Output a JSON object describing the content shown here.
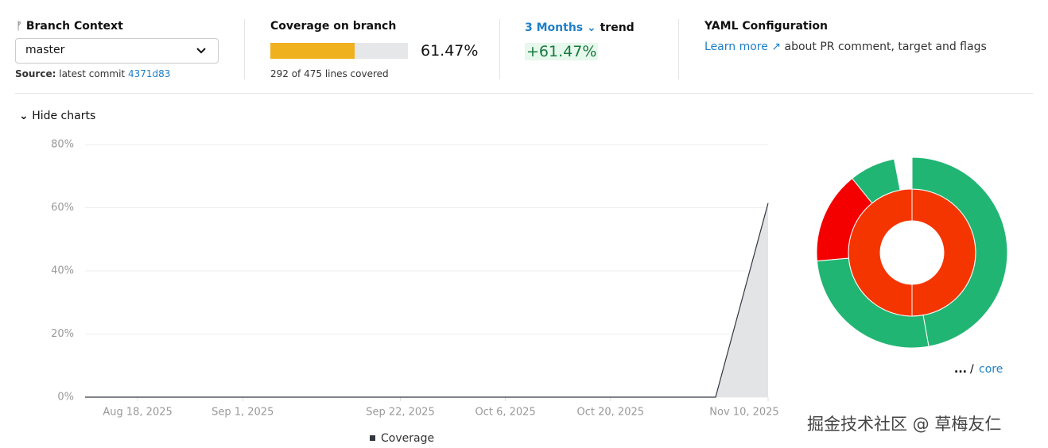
{
  "header": {
    "branch_title": "Branch Context",
    "branch": "master",
    "source_label": "Source:",
    "source_text": "latest commit",
    "commit": "4371d83",
    "coverage_title": "Coverage on branch",
    "coverage": {
      "value": 61.47,
      "label": "61.47%"
    },
    "lines_covered": "292 of 475 lines covered",
    "period": "3 Months",
    "trend_label": "trend",
    "trend_value": "+61.47%",
    "yaml_title": "YAML Configuration",
    "learn_more": "Learn more",
    "yaml_text": "about PR comment, target and flags",
    "toggle": "Hide charts"
  },
  "chart_data": [
    {
      "type": "line",
      "x": [
        "2025-08-11",
        "2025-08-18",
        "2025-08-25",
        "2025-09-01",
        "2025-09-08",
        "2025-09-15",
        "2025-09-22",
        "2025-09-29",
        "2025-10-06",
        "2025-10-13",
        "2025-10-20",
        "2025-10-27",
        "2025-11-03",
        "2025-11-10"
      ],
      "series": [
        {
          "name": "Coverage",
          "color": "#333840",
          "values": [
            0,
            0,
            0,
            0,
            0,
            0,
            0,
            0,
            0,
            0,
            0,
            0,
            0,
            61.47
          ]
        }
      ],
      "xlim": [
        "2025-08-11",
        "2025-11-10"
      ],
      "xticks": [
        {
          "value": "2025-08-18",
          "label": "Aug 18, 2025"
        },
        {
          "value": "2025-09-01",
          "label": "Sep 1, 2025"
        },
        {
          "value": "2025-09-22",
          "label": "Sep 22, 2025"
        },
        {
          "value": "2025-10-06",
          "label": "Oct 6, 2025"
        },
        {
          "value": "2025-10-20",
          "label": "Oct 20, 2025"
        },
        {
          "value": "2025-11-10",
          "label": "Nov 10, 2025"
        }
      ],
      "ylim": [
        0,
        80
      ],
      "yticks": [
        {
          "value": 0,
          "label": "0%"
        },
        {
          "value": 20,
          "label": "20%"
        },
        {
          "value": 40,
          "label": "40%"
        },
        {
          "value": 60,
          "label": "60%"
        },
        {
          "value": 80,
          "label": "80%"
        }
      ],
      "grid": true,
      "area_color": "#e3e4e6"
    },
    {
      "type": "sunburst",
      "inner": {
        "values": [
          100
        ],
        "colors": [
          "#f53500"
        ]
      },
      "outer": {
        "values": [
          47.2,
          26.4,
          15.6,
          7.8
        ],
        "colors": [
          "#21b573",
          "#21b573",
          "#f50000",
          "#21b573"
        ]
      },
      "breadcrumb": [
        "...",
        "core"
      ]
    }
  ],
  "watermark": "掘金技术社区 @ 草梅友仁"
}
